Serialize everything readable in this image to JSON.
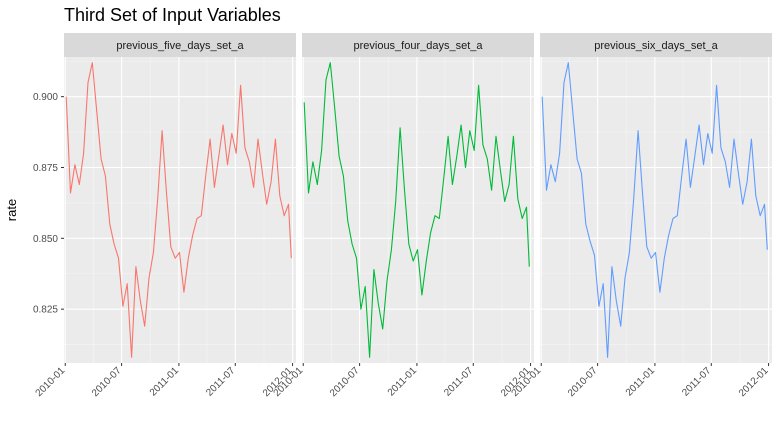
{
  "chart_data": {
    "type": "line",
    "title": "Third Set of Input Variables",
    "xlabel": "",
    "ylabel": "rate",
    "grid": true,
    "legend": "none",
    "x_ticks": [
      "2010-01",
      "2010-07",
      "2011-01",
      "2011-07",
      "2012-01"
    ],
    "y_ticks": [
      "0.825",
      "0.850",
      "0.875",
      "0.900"
    ],
    "xlim": [
      "2009-12-28",
      "2012-01-12"
    ],
    "ylim": [
      0.806,
      0.914
    ],
    "x_dates": [
      "2010-01-04",
      "2010-01-18",
      "2010-02-01",
      "2010-02-15",
      "2010-03-01",
      "2010-03-15",
      "2010-03-29",
      "2010-04-12",
      "2010-04-26",
      "2010-05-10",
      "2010-05-24",
      "2010-06-07",
      "2010-06-21",
      "2010-07-05",
      "2010-07-19",
      "2010-08-02",
      "2010-08-16",
      "2010-08-30",
      "2010-09-13",
      "2010-09-27",
      "2010-10-11",
      "2010-10-25",
      "2010-11-08",
      "2010-11-22",
      "2010-12-06",
      "2010-12-20",
      "2011-01-03",
      "2011-01-17",
      "2011-01-31",
      "2011-02-14",
      "2011-02-28",
      "2011-03-14",
      "2011-03-28",
      "2011-04-11",
      "2011-04-25",
      "2011-05-09",
      "2011-05-23",
      "2011-06-06",
      "2011-06-20",
      "2011-07-04",
      "2011-07-18",
      "2011-08-01",
      "2011-08-15",
      "2011-08-29",
      "2011-09-12",
      "2011-09-26",
      "2011-10-10",
      "2011-10-24",
      "2011-11-07",
      "2011-11-21",
      "2011-12-05",
      "2011-12-19",
      "2011-12-28"
    ],
    "panels": [
      {
        "strip": "previous_five_days_set_a",
        "color": "#F8766D",
        "values": [
          0.9,
          0.866,
          0.876,
          0.869,
          0.88,
          0.905,
          0.912,
          0.895,
          0.878,
          0.872,
          0.855,
          0.848,
          0.843,
          0.826,
          0.834,
          0.808,
          0.84,
          0.828,
          0.819,
          0.836,
          0.845,
          0.864,
          0.888,
          0.866,
          0.847,
          0.843,
          0.845,
          0.831,
          0.843,
          0.851,
          0.857,
          0.858,
          0.872,
          0.885,
          0.868,
          0.879,
          0.89,
          0.876,
          0.887,
          0.88,
          0.904,
          0.882,
          0.877,
          0.868,
          0.885,
          0.873,
          0.862,
          0.87,
          0.885,
          0.865,
          0.858,
          0.862,
          0.843
        ]
      },
      {
        "strip": "previous_four_days_set_a",
        "color": "#00BA38",
        "values": [
          0.898,
          0.866,
          0.877,
          0.869,
          0.881,
          0.906,
          0.912,
          0.896,
          0.879,
          0.872,
          0.856,
          0.848,
          0.843,
          0.825,
          0.833,
          0.808,
          0.839,
          0.827,
          0.818,
          0.835,
          0.846,
          0.863,
          0.889,
          0.867,
          0.848,
          0.842,
          0.846,
          0.83,
          0.842,
          0.852,
          0.858,
          0.857,
          0.871,
          0.886,
          0.869,
          0.879,
          0.89,
          0.875,
          0.888,
          0.881,
          0.904,
          0.883,
          0.878,
          0.867,
          0.886,
          0.874,
          0.863,
          0.869,
          0.886,
          0.864,
          0.857,
          0.861,
          0.84
        ]
      },
      {
        "strip": "previous_six_days_set_a",
        "color": "#619CFF",
        "values": [
          0.9,
          0.867,
          0.876,
          0.87,
          0.88,
          0.905,
          0.912,
          0.895,
          0.878,
          0.873,
          0.855,
          0.849,
          0.844,
          0.826,
          0.834,
          0.808,
          0.84,
          0.828,
          0.819,
          0.836,
          0.845,
          0.864,
          0.888,
          0.866,
          0.847,
          0.843,
          0.845,
          0.831,
          0.843,
          0.851,
          0.857,
          0.858,
          0.872,
          0.885,
          0.868,
          0.879,
          0.89,
          0.876,
          0.887,
          0.88,
          0.904,
          0.882,
          0.877,
          0.868,
          0.885,
          0.873,
          0.862,
          0.87,
          0.885,
          0.865,
          0.858,
          0.862,
          0.846
        ]
      }
    ]
  }
}
